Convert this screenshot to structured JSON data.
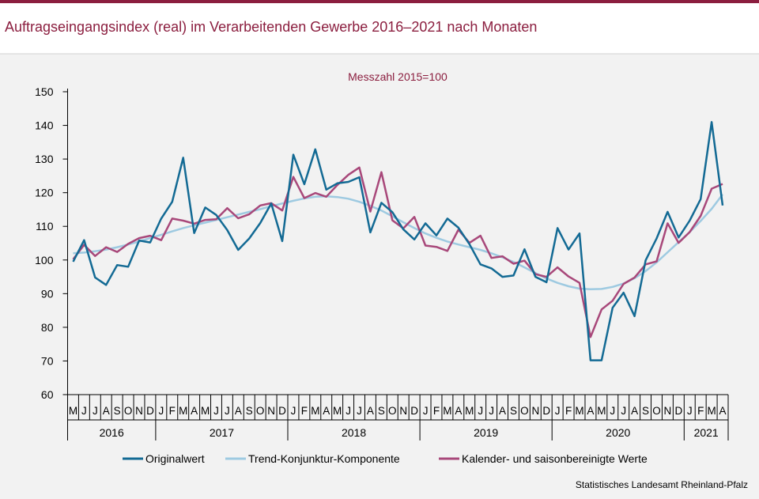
{
  "title": "Auftragseingangsindex (real) im Verarbeitenden Gewerbe 2016–2021 nach Monaten",
  "source": "Statistisches Landesamt Rheinland-Pfalz",
  "colors": {
    "brand": "#8b1e3f",
    "original": "#136a94",
    "trend": "#9ecae1",
    "adjusted": "#a8487a"
  },
  "chart_data": {
    "type": "line",
    "subtitle": "Messzahl 2015=100",
    "ylim": [
      60,
      150
    ],
    "yticks": [
      60,
      70,
      80,
      90,
      100,
      110,
      120,
      130,
      140,
      150
    ],
    "categories": [
      "M",
      "J",
      "J",
      "A",
      "S",
      "O",
      "N",
      "D",
      "J",
      "F",
      "M",
      "A",
      "M",
      "J",
      "J",
      "A",
      "S",
      "O",
      "N",
      "D",
      "J",
      "F",
      "M",
      "A",
      "M",
      "J",
      "J",
      "A",
      "S",
      "O",
      "N",
      "D",
      "J",
      "F",
      "M",
      "A",
      "M",
      "J",
      "J",
      "A",
      "S",
      "O",
      "N",
      "D",
      "J",
      "F",
      "M",
      "A",
      "M",
      "J",
      "J",
      "A",
      "S",
      "O",
      "N",
      "D",
      "J",
      "F",
      "M",
      "A"
    ],
    "years": [
      {
        "label": "2016",
        "start": 0,
        "end": 8
      },
      {
        "label": "2017",
        "start": 8,
        "end": 20
      },
      {
        "label": "2018",
        "start": 20,
        "end": 32
      },
      {
        "label": "2019",
        "start": 32,
        "end": 44
      },
      {
        "label": "2020",
        "start": 44,
        "end": 56
      },
      {
        "label": "2021",
        "start": 56,
        "end": 60
      }
    ],
    "series": [
      {
        "name": "Originalwert",
        "values": [
          99.5,
          105.9,
          94.8,
          92.6,
          98.5,
          98.0,
          105.8,
          105.2,
          112.3,
          117.3,
          130.4,
          108.0,
          115.6,
          113.4,
          108.9,
          103.0,
          106.4,
          111.0,
          116.8,
          105.6,
          131.3,
          122.5,
          132.9,
          120.9,
          122.8,
          123.2,
          124.6,
          108.2,
          117.0,
          114.2,
          109.1,
          106.1,
          110.9,
          107.3,
          112.3,
          109.6,
          104.7,
          98.7,
          97.5,
          95.0,
          95.4,
          103.2,
          95.0,
          93.4,
          109.5,
          103.1,
          107.9,
          70.2,
          70.2,
          85.8,
          90.3,
          83.3,
          99.9,
          106.4,
          114.3,
          106.7,
          111.7,
          118.1,
          141.0,
          116.2
        ]
      },
      {
        "name": "Trend-Konjunktur-Komponente",
        "values": [
          102.0,
          102.2,
          102.6,
          103.1,
          103.8,
          104.6,
          105.5,
          106.5,
          107.5,
          108.5,
          109.5,
          110.3,
          111.1,
          111.9,
          112.7,
          113.5,
          114.3,
          115.1,
          116.0,
          116.8,
          117.6,
          118.3,
          118.8,
          118.9,
          118.7,
          118.2,
          117.3,
          116.1,
          114.7,
          113.0,
          111.2,
          109.5,
          107.9,
          106.6,
          105.5,
          104.6,
          103.8,
          103.0,
          102.0,
          100.8,
          99.4,
          97.8,
          96.1,
          94.5,
          93.2,
          92.2,
          91.5,
          91.3,
          91.4,
          92.0,
          93.0,
          94.6,
          96.7,
          99.3,
          102.3,
          105.3,
          108.3,
          111.6,
          115.2,
          119.5
        ]
      },
      {
        "name": "Kalender- und saisonbereinigte Werte",
        "values": [
          100.2,
          104.5,
          101.2,
          103.8,
          102.4,
          104.8,
          106.5,
          107.2,
          105.9,
          112.3,
          111.7,
          110.8,
          111.9,
          112.1,
          115.4,
          112.4,
          113.6,
          116.2,
          116.9,
          114.7,
          124.7,
          118.4,
          119.9,
          118.8,
          122.3,
          125.3,
          127.5,
          114.4,
          126.1,
          111.8,
          109.4,
          112.8,
          104.3,
          103.9,
          102.7,
          109.0,
          105.1,
          107.2,
          100.6,
          101.1,
          98.9,
          99.8,
          95.8,
          95.0,
          97.8,
          95.1,
          93.2,
          77.1,
          85.3,
          87.9,
          92.9,
          94.8,
          98.7,
          99.6,
          110.9,
          105.1,
          108.3,
          113.1,
          121.2,
          122.6
        ]
      }
    ]
  }
}
